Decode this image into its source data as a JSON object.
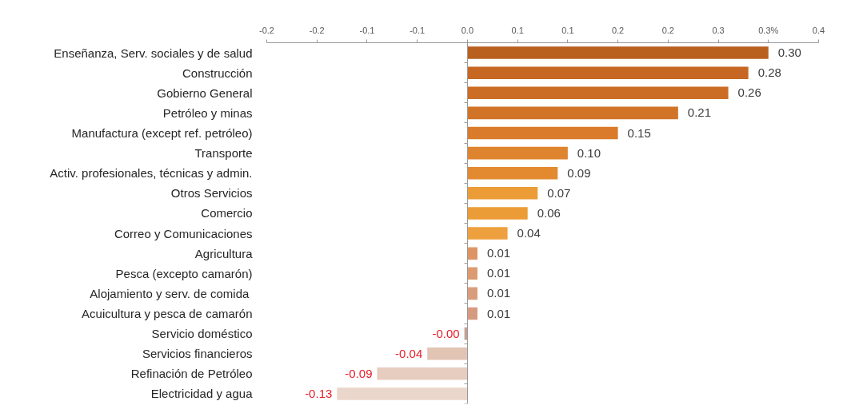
{
  "chart_data": {
    "type": "bar",
    "orientation": "horizontal",
    "categories": [
      "Enseñanza, Serv. sociales y de salud",
      "Construcción",
      "Gobierno General",
      "Petróleo y minas",
      "Manufactura (except ref. petróleo)",
      "Transporte",
      "Activ. profesionales, técnicas y admin.",
      "Otros Servicios",
      "Comercio",
      "Correo y Comunicaciones",
      "Agricultura",
      "Pesca (excepto camarón)",
      "Alojamiento y serv. de comida ",
      "Acuicultura y pesca de camarón",
      "Servicio doméstico",
      "Servicios financieros",
      "Refinación de Petróleo",
      "Electricidad y agua"
    ],
    "values": [
      0.3,
      0.28,
      0.26,
      0.21,
      0.15,
      0.1,
      0.09,
      0.07,
      0.06,
      0.04,
      0.01,
      0.01,
      0.01,
      0.01,
      -0.003,
      -0.04,
      -0.09,
      -0.13
    ],
    "value_labels": [
      "0.30",
      "0.28",
      "0.26",
      "0.21",
      "0.15",
      "0.10",
      "0.09",
      "0.07",
      "0.06",
      "0.04",
      "0.01",
      "0.01",
      "0.01",
      "0.01",
      "-0.00",
      "-0.04",
      "-0.09",
      "-0.13"
    ],
    "colors": [
      "#b9601f",
      "#c66823",
      "#cb6d25",
      "#d27428",
      "#d97b2b",
      "#df842e",
      "#e38a31",
      "#eb9c37",
      "#eb9c37",
      "#eea03e",
      "#dd9565",
      "#dc9a72",
      "#d99c7c",
      "#d69a80",
      "#c8a090",
      "#e2c4b4",
      "#e6cdbf",
      "#ead6ca"
    ],
    "xlim": [
      -0.2,
      0.35
    ],
    "xticks": [
      {
        "value": -0.2,
        "label": "-0.2"
      },
      {
        "value": -0.15,
        "label": "-0.2"
      },
      {
        "value": -0.1,
        "label": "-0.1"
      },
      {
        "value": -0.05,
        "label": "-0.1"
      },
      {
        "value": 0,
        "label": "0.0"
      },
      {
        "value": 0.05,
        "label": "0.1"
      },
      {
        "value": 0.1,
        "label": "0.1"
      },
      {
        "value": 0.15,
        "label": "0.2"
      },
      {
        "value": 0.2,
        "label": "0.2"
      },
      {
        "value": 0.25,
        "label": "0.3"
      },
      {
        "value": 0.3,
        "label": "0.3%"
      },
      {
        "value": 0.35,
        "label": "0.4"
      }
    ]
  }
}
